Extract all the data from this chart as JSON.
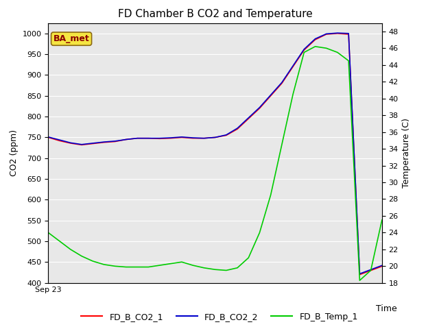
{
  "title": "FD Chamber B CO2 and Temperature",
  "xlabel": "Time",
  "ylabel_left": "CO2 (ppm)",
  "ylabel_right": "Temperature (C)",
  "x_label_start": "Sep 23",
  "ylim_left": [
    400,
    1025
  ],
  "ylim_right": [
    18,
    49
  ],
  "yticks_left": [
    400,
    450,
    500,
    550,
    600,
    650,
    700,
    750,
    800,
    850,
    900,
    950,
    1000
  ],
  "yticks_right": [
    18,
    20,
    22,
    24,
    26,
    28,
    30,
    32,
    34,
    36,
    38,
    40,
    42,
    44,
    46,
    48
  ],
  "annotation_text": "BA_met",
  "annotation_color": "#8B0000",
  "annotation_bg": "#F5E542",
  "annotation_edge": "#8B6914",
  "bg_color": "#E8E8E8",
  "co2_1_color": "#FF0000",
  "co2_2_color": "#0000CC",
  "temp_color": "#00CC00",
  "co2_1_y": [
    750,
    742,
    736,
    732,
    735,
    738,
    740,
    745,
    748,
    748,
    747,
    748,
    750,
    748,
    748,
    750,
    755,
    770,
    795,
    820,
    850,
    880,
    920,
    960,
    985,
    998,
    1000,
    998,
    420,
    430,
    440
  ],
  "co2_2_y": [
    751,
    744,
    737,
    733,
    736,
    739,
    741,
    745,
    748,
    748,
    748,
    749,
    751,
    749,
    748,
    750,
    756,
    772,
    797,
    822,
    852,
    882,
    922,
    962,
    987,
    999,
    1001,
    1000,
    422,
    432,
    442
  ],
  "temp_y": [
    24.0,
    23.0,
    22.0,
    21.2,
    20.6,
    20.2,
    20.0,
    19.9,
    19.9,
    19.9,
    20.1,
    20.3,
    20.5,
    20.1,
    19.8,
    19.6,
    19.5,
    19.8,
    21.0,
    24.0,
    28.5,
    34.5,
    40.5,
    45.5,
    46.2,
    46.0,
    45.5,
    44.5,
    18.3,
    19.5,
    25.5
  ],
  "legend_co2_1": "FD_B_CO2_1",
  "legend_co2_2": "FD_B_CO2_2",
  "legend_temp": "FD_B_Temp_1",
  "grid_color": "white",
  "grid_linewidth": 0.8
}
